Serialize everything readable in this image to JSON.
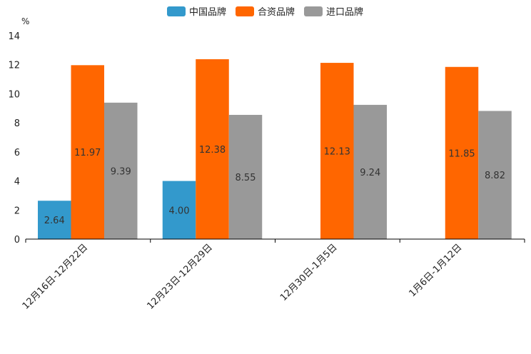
{
  "chart_data": {
    "type": "bar",
    "title": "",
    "xlabel": "",
    "ylabel": "",
    "y_unit": "%",
    "ylim": [
      0,
      14
    ],
    "yticks": [
      "0",
      "2",
      "4",
      "6",
      "8",
      "10",
      "12",
      "14"
    ],
    "categories": [
      "12月16日-12月22日",
      "12月23日-12月29日",
      "12月30日-1月5日",
      "1月6日-1月12日"
    ],
    "series": [
      {
        "name": "中国品牌",
        "color": "#3399cc",
        "values": [
          2.64,
          4.0,
          null,
          null
        ],
        "labels": [
          "2.64",
          "4.00",
          null,
          null
        ]
      },
      {
        "name": "合资品牌",
        "color": "#ff6600",
        "values": [
          11.97,
          12.38,
          12.13,
          11.85
        ],
        "labels": [
          "11.97",
          "12.38",
          "12.13",
          "11.85"
        ]
      },
      {
        "name": "进口品牌",
        "color": "#999999",
        "values": [
          9.39,
          8.55,
          9.24,
          8.82
        ],
        "labels": [
          "9.39",
          "8.55",
          "9.24",
          "8.82"
        ]
      }
    ],
    "legend_position": "top-center",
    "grid": false
  }
}
